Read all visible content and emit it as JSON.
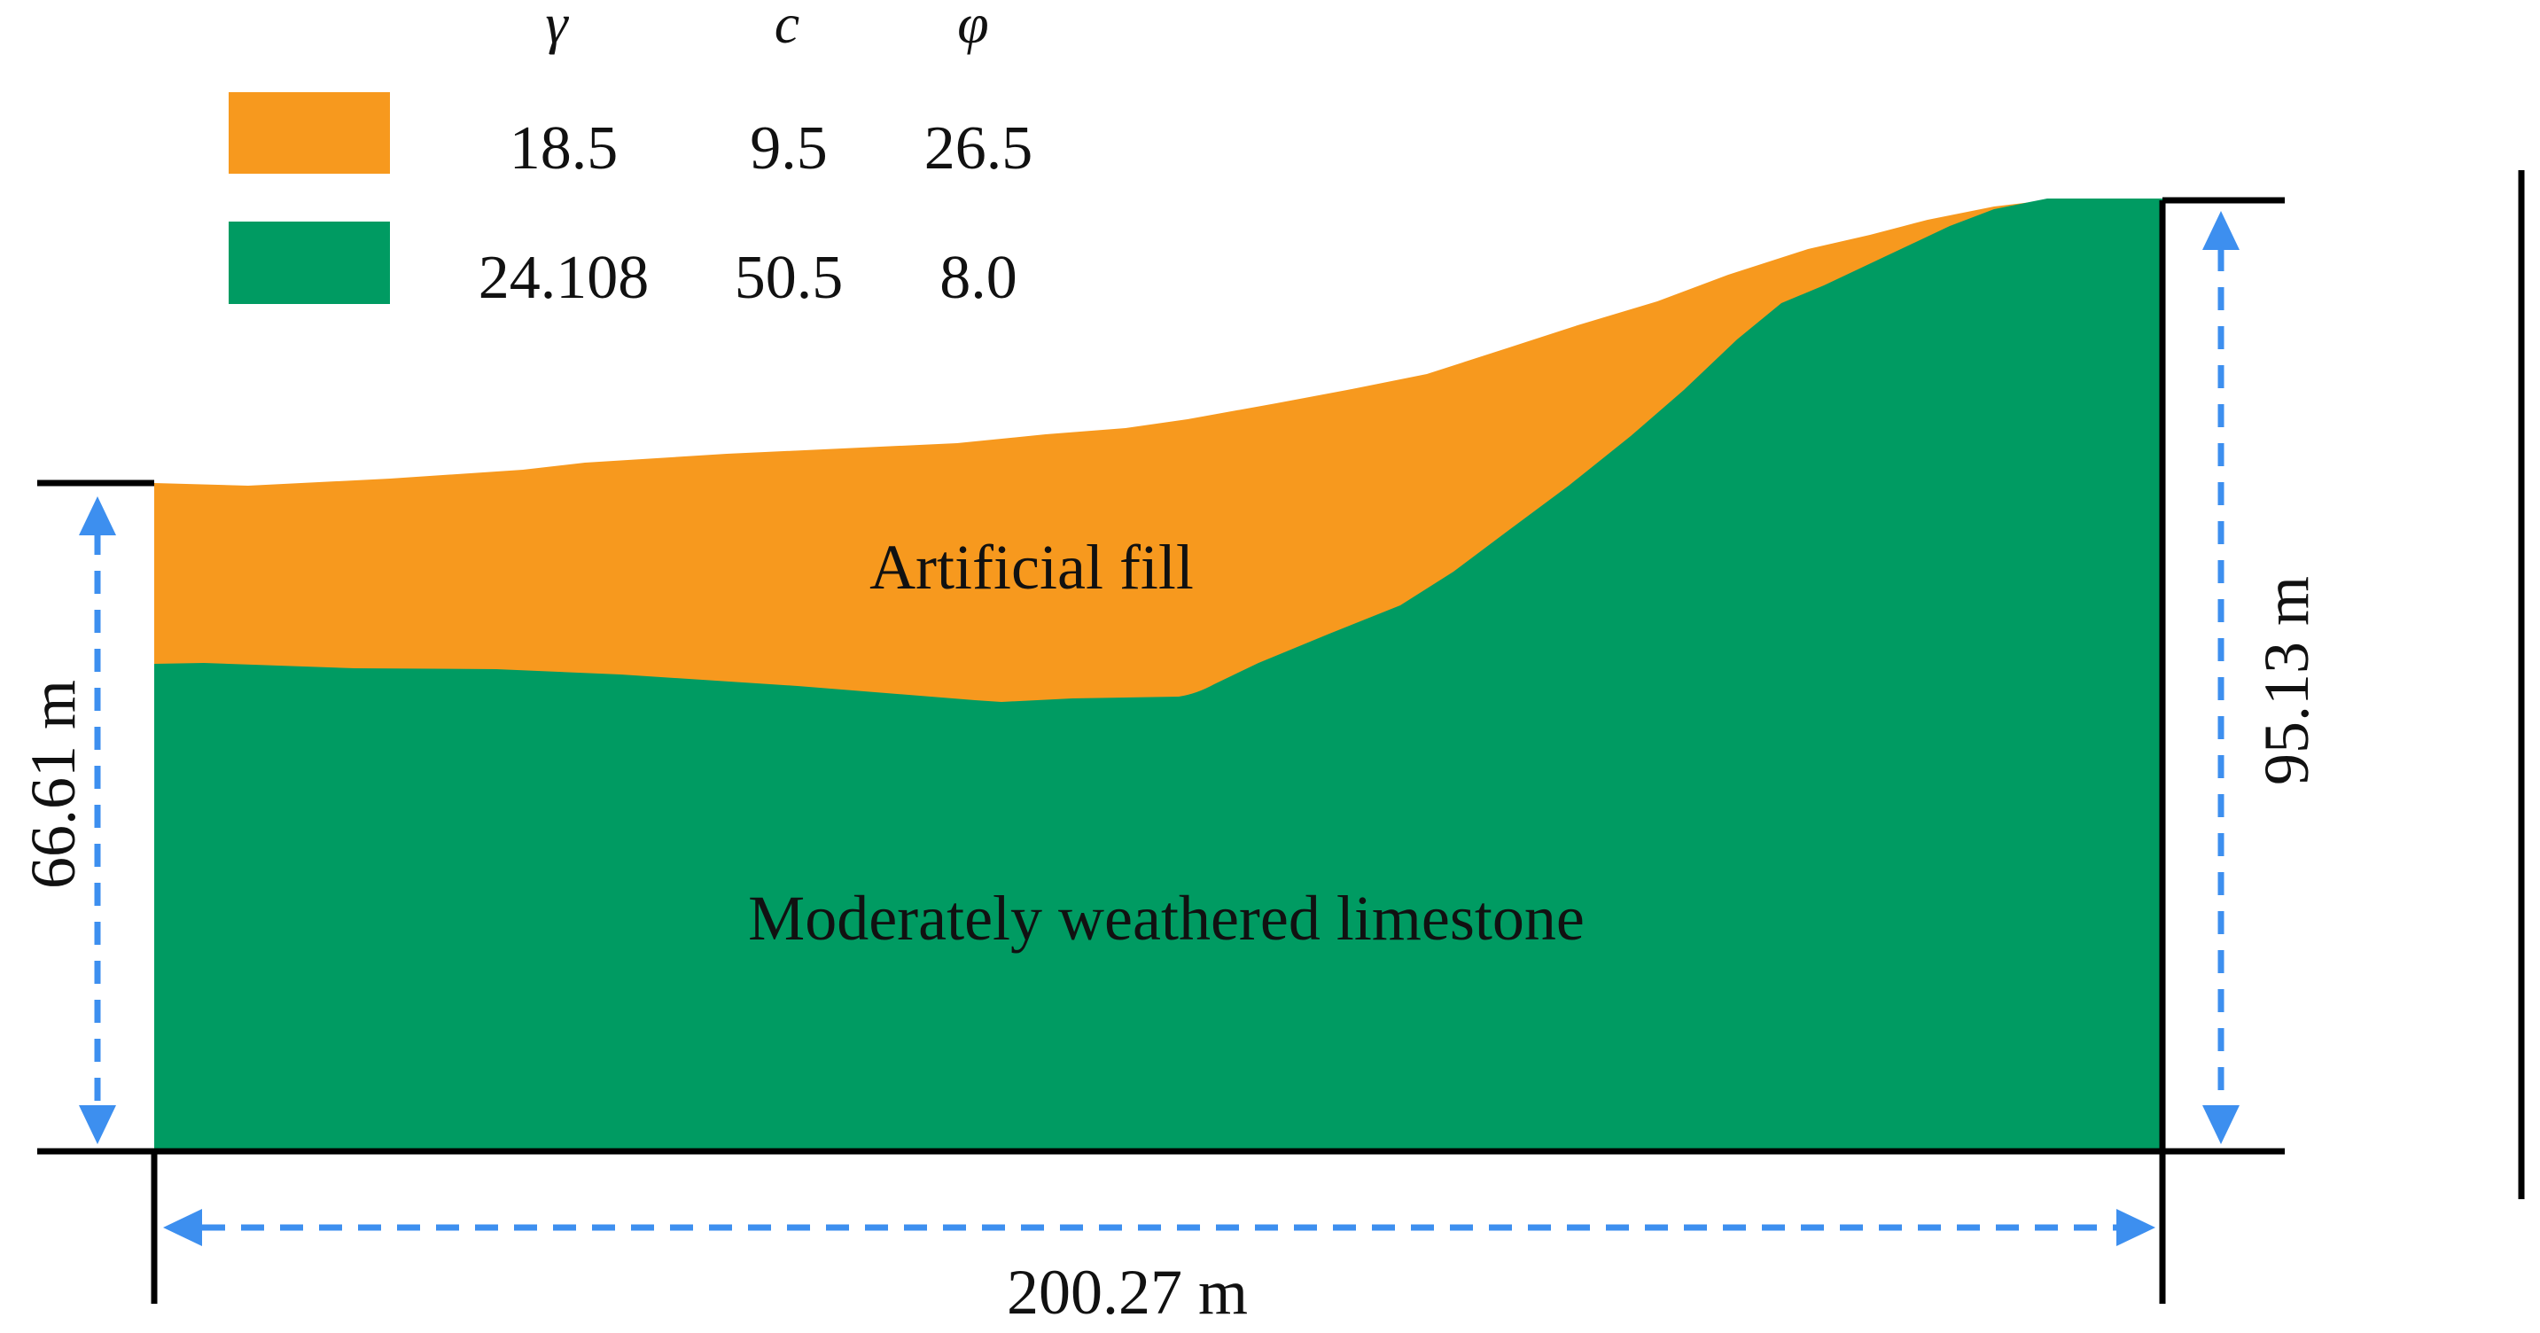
{
  "legend": {
    "headers": {
      "gamma": "γ",
      "c": "c",
      "phi": "φ"
    },
    "rows": [
      {
        "color": "#F7991E",
        "gamma": "18.5",
        "c": "9.5",
        "phi": "26.5"
      },
      {
        "color": "#009B62",
        "gamma": "24.108",
        "c": "50.5",
        "phi": "8.0"
      }
    ]
  },
  "layers": {
    "fill": {
      "label": "Artificial fill",
      "color": "#F7991E"
    },
    "rock": {
      "label": "Moderately weathered limestone",
      "color": "#009B62"
    }
  },
  "dimensions": {
    "left_height": "66.61 m",
    "right_height": "95.13 m",
    "width": "200.27 m"
  }
}
